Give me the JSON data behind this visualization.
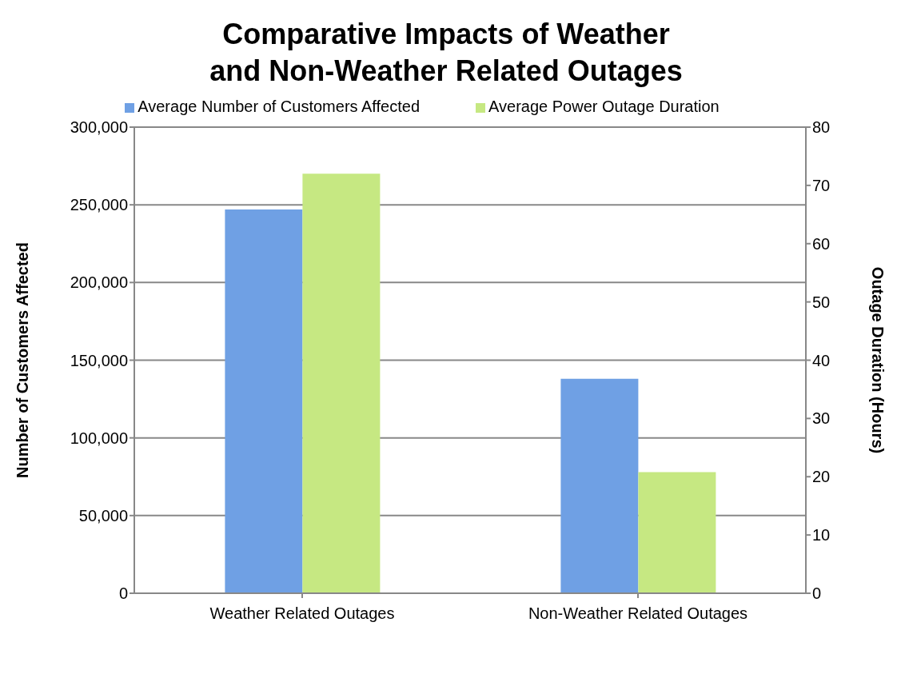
{
  "chart_data": {
    "type": "bar",
    "title": "Comparative Impacts of Weather and Non-Weather Related Outages",
    "categories": [
      "Weather Related Outages",
      "Non-Weather Related Outages"
    ],
    "series": [
      {
        "name": "Average Number of Customers Affected",
        "color": "#6fa0e4",
        "values": [
          247000,
          138000
        ]
      },
      {
        "name": "Average Power Outage Duration",
        "color": "#c6e882",
        "values": [
          72,
          20.8
        ],
        "axis": "y2"
      }
    ],
    "ylabel": "Number of Customers Affected",
    "y2label": "Outage Duration (Hours)",
    "ylim": [
      0,
      300000
    ],
    "yticks": [
      0,
      {
        "value": 50000,
        "label": "50,000"
      },
      {
        "value": 100000,
        "label": "100,000"
      },
      {
        "value": 150000,
        "label": "150,000"
      },
      {
        "value": 200000,
        "label": "200,000"
      },
      {
        "value": 250000,
        "label": "250,000"
      },
      {
        "value": 300000,
        "label": "300,000"
      }
    ],
    "y2lim": [
      0,
      80
    ],
    "y2ticks": [
      0,
      10,
      20,
      30,
      40,
      50,
      60,
      70,
      80
    ],
    "grid": "y",
    "legend": "top"
  }
}
